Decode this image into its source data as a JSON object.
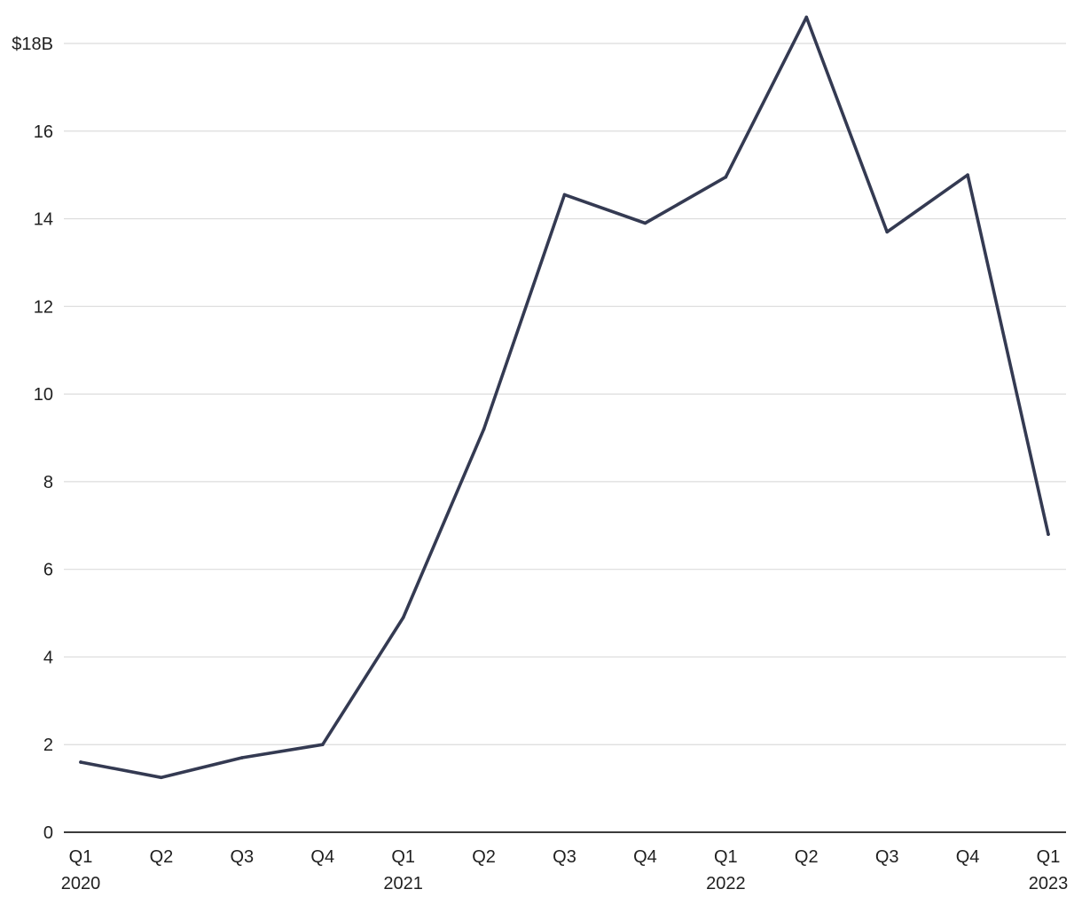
{
  "chart_data": {
    "type": "line",
    "title": "",
    "xlabel": "",
    "ylabel": "",
    "categories": [
      "Q1 2020",
      "Q2 2020",
      "Q3 2020",
      "Q4 2020",
      "Q1 2021",
      "Q2 2021",
      "Q3 2021",
      "Q4 2021",
      "Q1 2022",
      "Q2 2022",
      "Q3 2022",
      "Q4 2022",
      "Q1 2023"
    ],
    "x_tick_labels": [
      {
        "quarter": "Q1",
        "year": "2020"
      },
      {
        "quarter": "Q2",
        "year": ""
      },
      {
        "quarter": "Q3",
        "year": ""
      },
      {
        "quarter": "Q4",
        "year": ""
      },
      {
        "quarter": "Q1",
        "year": "2021"
      },
      {
        "quarter": "Q2",
        "year": ""
      },
      {
        "quarter": "Q3",
        "year": ""
      },
      {
        "quarter": "Q4",
        "year": ""
      },
      {
        "quarter": "Q1",
        "year": "2022"
      },
      {
        "quarter": "Q2",
        "year": ""
      },
      {
        "quarter": "Q3",
        "year": ""
      },
      {
        "quarter": "Q4",
        "year": ""
      },
      {
        "quarter": "Q1",
        "year": "2023"
      }
    ],
    "series": [
      {
        "values": [
          1.6,
          1.25,
          1.7,
          2.0,
          4.9,
          9.2,
          14.55,
          13.9,
          14.95,
          18.6,
          13.7,
          15.0,
          6.8
        ],
        "color": "#343a52"
      }
    ],
    "ylim": [
      0,
      18.6
    ],
    "y_ticks": [
      0,
      2,
      4,
      6,
      8,
      10,
      12,
      14,
      16,
      18
    ],
    "y_tick_labels": [
      "0",
      "2",
      "4",
      "6",
      "8",
      "10",
      "12",
      "14",
      "16",
      "$18B"
    ],
    "grid": true,
    "legend": "none"
  }
}
